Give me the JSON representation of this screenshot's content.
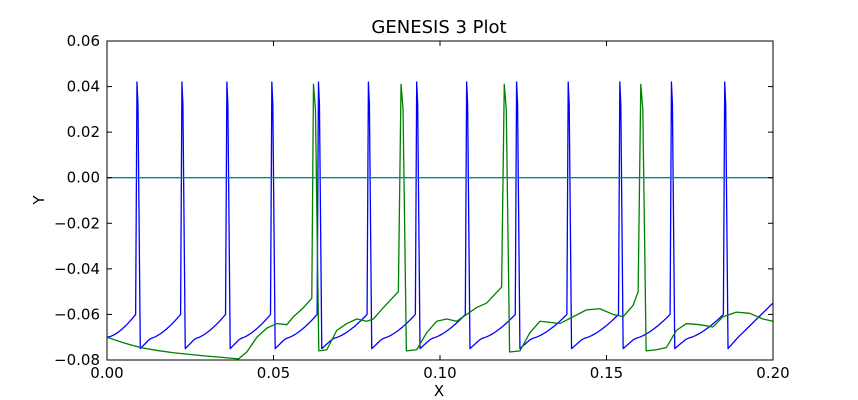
{
  "chart_data": {
    "type": "line",
    "title": "GENESIS 3 Plot",
    "xlabel": "X",
    "ylabel": "Y",
    "xlim": [
      0.0,
      0.2
    ],
    "ylim": [
      -0.08,
      0.06
    ],
    "grid": false,
    "x_ticks": [
      "0.00",
      "0.05",
      "0.10",
      "0.15",
      "0.20"
    ],
    "y_ticks": [
      "−0.08",
      "−0.06",
      "−0.04",
      "−0.02",
      "0.00",
      "0.02",
      "0.04",
      "0.06"
    ],
    "series": [
      {
        "name": "blue",
        "color": "#0000ff",
        "baseline": -0.07,
        "spike_times": [
          0.009,
          0.0225,
          0.036,
          0.0495,
          0.0635,
          0.0785,
          0.093,
          0.108,
          0.123,
          0.1385,
          0.154,
          0.1695,
          0.1855
        ],
        "spike_peak": 0.042,
        "trough": -0.075,
        "threshold": -0.06,
        "end_value": -0.055
      },
      {
        "name": "green",
        "color": "#008000",
        "points": [
          [
            0.0,
            -0.07
          ],
          [
            0.005,
            -0.0725
          ],
          [
            0.01,
            -0.0745
          ],
          [
            0.015,
            -0.0758
          ],
          [
            0.02,
            -0.0768
          ],
          [
            0.025,
            -0.0776
          ],
          [
            0.03,
            -0.0783
          ],
          [
            0.035,
            -0.0789
          ],
          [
            0.0395,
            -0.0795
          ],
          [
            0.042,
            -0.0765
          ],
          [
            0.045,
            -0.07
          ],
          [
            0.048,
            -0.066
          ],
          [
            0.051,
            -0.064
          ],
          [
            0.054,
            -0.0645
          ],
          [
            0.056,
            -0.061
          ],
          [
            0.059,
            -0.057
          ],
          [
            0.0615,
            -0.053
          ],
          [
            0.062,
            0.041
          ],
          [
            0.0626,
            0.03
          ],
          [
            0.0636,
            -0.076
          ],
          [
            0.066,
            -0.0755
          ],
          [
            0.069,
            -0.067
          ],
          [
            0.072,
            -0.064
          ],
          [
            0.075,
            -0.062
          ],
          [
            0.078,
            -0.063
          ],
          [
            0.08,
            -0.062
          ],
          [
            0.083,
            -0.057
          ],
          [
            0.0875,
            -0.05
          ],
          [
            0.0883,
            0.041
          ],
          [
            0.0889,
            0.03
          ],
          [
            0.0899,
            -0.076
          ],
          [
            0.093,
            -0.0755
          ],
          [
            0.096,
            -0.068
          ],
          [
            0.099,
            -0.063
          ],
          [
            0.102,
            -0.062
          ],
          [
            0.105,
            -0.063
          ],
          [
            0.108,
            -0.06
          ],
          [
            0.111,
            -0.057
          ],
          [
            0.114,
            -0.055
          ],
          [
            0.1185,
            -0.048
          ],
          [
            0.1193,
            0.041
          ],
          [
            0.1199,
            0.03
          ],
          [
            0.1209,
            -0.0765
          ],
          [
            0.124,
            -0.076
          ],
          [
            0.127,
            -0.068
          ],
          [
            0.13,
            -0.063
          ],
          [
            0.133,
            -0.0635
          ],
          [
            0.136,
            -0.064
          ],
          [
            0.14,
            -0.061
          ],
          [
            0.144,
            -0.058
          ],
          [
            0.148,
            -0.0575
          ],
          [
            0.152,
            -0.06
          ],
          [
            0.155,
            -0.061
          ],
          [
            0.158,
            -0.056
          ],
          [
            0.1595,
            -0.05
          ],
          [
            0.1603,
            0.041
          ],
          [
            0.1609,
            0.03
          ],
          [
            0.1619,
            -0.076
          ],
          [
            0.165,
            -0.0755
          ],
          [
            0.168,
            -0.0745
          ],
          [
            0.171,
            -0.067
          ],
          [
            0.174,
            -0.064
          ],
          [
            0.178,
            -0.0645
          ],
          [
            0.182,
            -0.0655
          ],
          [
            0.185,
            -0.061
          ],
          [
            0.189,
            -0.059
          ],
          [
            0.193,
            -0.0595
          ],
          [
            0.197,
            -0.062
          ],
          [
            0.2,
            -0.063
          ]
        ]
      },
      {
        "name": "teal",
        "color": "#008b8b",
        "points": [
          [
            0.0,
            0.0
          ],
          [
            0.2,
            0.0
          ]
        ]
      }
    ]
  }
}
